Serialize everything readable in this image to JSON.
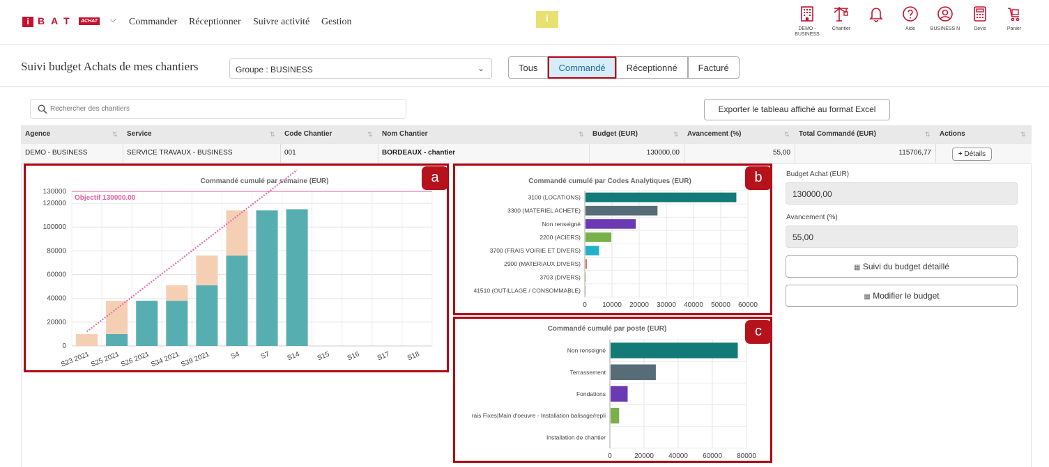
{
  "topbar": {
    "logo_i": "i",
    "logo_text": "BAT",
    "logo_badge": "ACHAT",
    "nav": [
      "Commander",
      "Réceptionner",
      "Suivre activité",
      "Gestion"
    ],
    "center_logo": "i",
    "icons": [
      {
        "name": "building-icon",
        "label": "DEMO - BUSINESS"
      },
      {
        "name": "crane-icon",
        "label": "Chantier"
      },
      {
        "name": "bell-icon",
        "label": ""
      },
      {
        "name": "help-icon",
        "label": "Aide"
      },
      {
        "name": "user-icon",
        "label": "BUSINESS N"
      },
      {
        "name": "calculator-icon",
        "label": "Devis"
      },
      {
        "name": "cart-icon",
        "label": "Panier"
      }
    ]
  },
  "header": {
    "title": "Suivi budget Achats de mes chantiers",
    "group_select": "Groupe : BUSINESS",
    "tabs": [
      "Tous",
      "Commandé",
      "Réceptionné",
      "Facturé"
    ],
    "active_tab": "Commandé"
  },
  "search": {
    "placeholder": "Rechercher des chantiers"
  },
  "export_label": "Exporter le tableau affiché au format Excel",
  "table": {
    "columns": [
      "Agence",
      "Service",
      "Code Chantier",
      "Nom Chantier",
      "Budget (EUR)",
      "Avancement (%)",
      "Total Commandé (EUR)",
      "Actions"
    ],
    "rows": [
      {
        "agence": "DEMO - BUSINESS",
        "service": "SERVICE TRAVAUX - BUSINESS",
        "code": "001",
        "nom": "BORDEAUX - chantier",
        "budget": "130000,00",
        "avancement": "55,00",
        "total": "115706,77",
        "action": "Détails"
      }
    ]
  },
  "right_panel": {
    "budget_label": "Budget Achat (EUR)",
    "budget_value": "130000,00",
    "avancement_label": "Avancement (%)",
    "avancement_value": "55,00",
    "suivi_btn": "Suivi du budget détaillé",
    "modifier_btn": "Modifier le budget"
  },
  "badges": [
    "a",
    "b",
    "c"
  ],
  "colors": {
    "brand_red": "#c8102e",
    "panel_border": "#b00010",
    "teal": "#56aeb1",
    "peach": "#f5cfb4",
    "objectif_pink": "#e060a0"
  },
  "chart_data": [
    {
      "type": "bar",
      "title": "Commandé cumulé par semaine (EUR)",
      "categories": [
        "S23 2021",
        "S25 2021",
        "S26 2021",
        "S34 2021",
        "S39 2021",
        "S4",
        "S7",
        "S14",
        "S15",
        "S16",
        "S17",
        "S18"
      ],
      "series": [
        {
          "values": [
            0,
            10000,
            38000,
            38000,
            51000,
            76000,
            114000,
            115000,
            null,
            null,
            null,
            null
          ]
        },
        {
          "values": [
            10000,
            28000,
            0,
            13000,
            25000,
            38000,
            0,
            0,
            null,
            null,
            null,
            null
          ]
        }
      ],
      "stacked": true,
      "ylim": [
        0,
        130000
      ],
      "yticks": [
        0,
        20000,
        40000,
        60000,
        80000,
        100000,
        120000,
        130000
      ],
      "objective": {
        "label": "Objectif 130000.00",
        "value": 130000
      },
      "trend_line": {
        "from": {
          "x": "S23 2021",
          "y": 12000
        },
        "to": {
          "x": "S14",
          "y": 148000
        }
      },
      "grid": true
    },
    {
      "type": "bar",
      "orientation": "horizontal",
      "title": "Commandé cumulé par Codes Analytiques (EUR)",
      "categories": [
        "3100 (LOCATIONS)",
        "3300 (MATERIEL ACHETE)",
        "Non renseigné",
        "2200 (ACIERS)",
        "3700 (FRAIS VOIRIE ET DIVERS)",
        "2900 (MATERIAUX DIVERS)",
        "3703 (DIVERS)",
        "41510 (OUTILLAGE / CONSOMMABLE)"
      ],
      "values": [
        55500,
        26500,
        18500,
        9500,
        5000,
        500,
        200,
        100
      ],
      "colors": [
        "#127b78",
        "#566d78",
        "#6a3ab5",
        "#7ab04a",
        "#23b1c8",
        "#e06666",
        "#e8b86a",
        "#cccccc"
      ],
      "xlim": [
        0,
        60000
      ],
      "xticks": [
        0,
        10000,
        20000,
        30000,
        40000,
        50000,
        60000
      ],
      "grid": true
    },
    {
      "type": "bar",
      "orientation": "horizontal",
      "title": "Commandé cumulé par poste (EUR)",
      "categories": [
        "Non renseigné",
        "Terrassement",
        "Fondations",
        "rais Fixes|Main d'oeuvre - Installation balisage/repli",
        "Installation de chantier"
      ],
      "values": [
        74500,
        26500,
        10000,
        5000,
        0
      ],
      "colors": [
        "#127b78",
        "#566d78",
        "#6a3ab5",
        "#7ab04a",
        "#cccccc"
      ],
      "xlim": [
        0,
        80000
      ],
      "xticks": [
        0,
        20000,
        40000,
        60000,
        80000
      ],
      "grid": true
    }
  ]
}
